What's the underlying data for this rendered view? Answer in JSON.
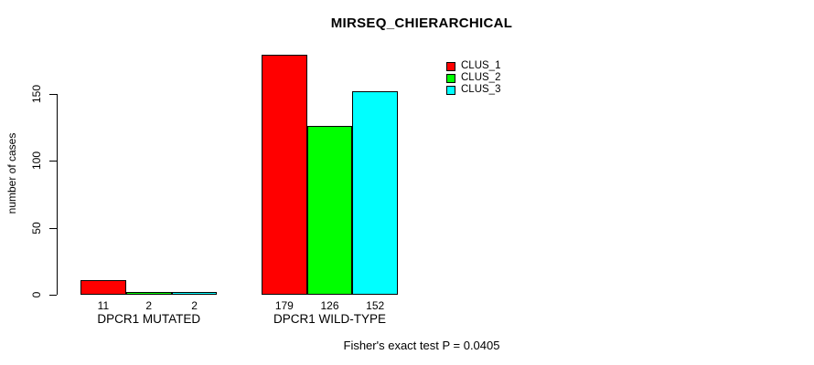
{
  "title": "MIRSEQ_CHIERARCHICAL",
  "chart_data": {
    "type": "bar",
    "title": "MIRSEQ_CHIERARCHICAL",
    "categories": [
      "DPCR1 MUTATED",
      "DPCR1 WILD-TYPE"
    ],
    "series": [
      {
        "name": "CLUS_1",
        "color": "#FF0000",
        "values": [
          11,
          179
        ]
      },
      {
        "name": "CLUS_2",
        "color": "#00FF00",
        "values": [
          2,
          126
        ]
      },
      {
        "name": "CLUS_3",
        "color": "#00FFFF",
        "values": [
          2,
          152
        ]
      }
    ],
    "xlabel": "",
    "ylabel": "number of cases",
    "ylim": [
      0,
      150
    ],
    "yticks": [
      0,
      50,
      100,
      150
    ],
    "grid": false,
    "legend_position": "top-right-inside",
    "bar_value_labels": [
      [
        11,
        2,
        2
      ],
      [
        179,
        126,
        152
      ]
    ],
    "bar_border_color": "#000000"
  },
  "footer": {
    "caption": "Fisher's exact test P = 0.0405"
  }
}
